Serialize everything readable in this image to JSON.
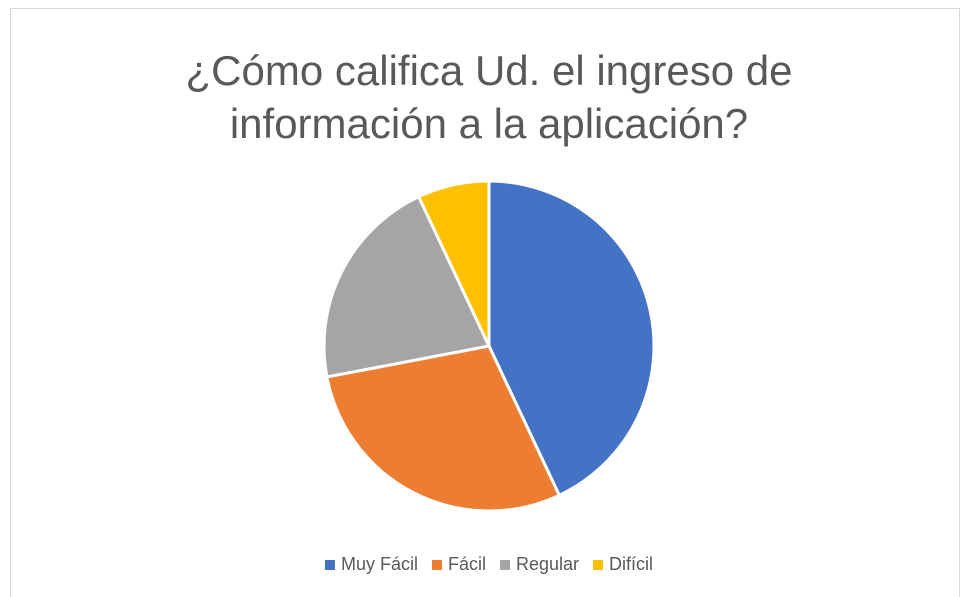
{
  "chart_data": {
    "type": "pie",
    "title": [
      "¿Cómo califica Ud. el ingreso de",
      "información a la aplicación?"
    ],
    "categories": [
      "Muy Fácil",
      "Fácil",
      "Regular",
      "Difícil"
    ],
    "values": [
      43,
      29,
      21,
      7
    ],
    "colors": [
      "#4472c4",
      "#ed7d31",
      "#a5a5a5",
      "#ffc000"
    ],
    "legend": "bottom"
  }
}
